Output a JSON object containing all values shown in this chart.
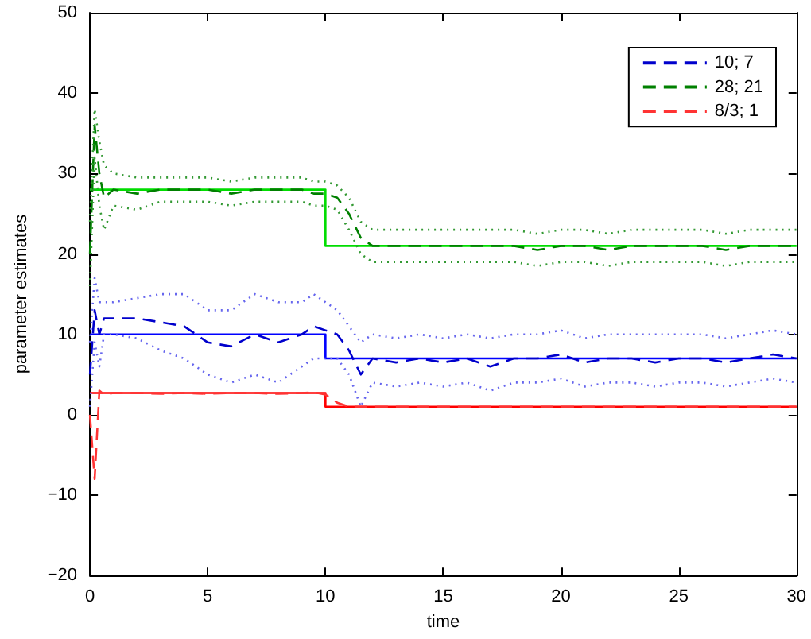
{
  "chart_data": {
    "type": "line",
    "xlabel": "time",
    "ylabel": "parameter estimates",
    "xlim": [
      0,
      30
    ],
    "ylim": [
      -20,
      50
    ],
    "xticks": [
      0,
      5,
      10,
      15,
      20,
      25,
      30
    ],
    "yticks": [
      -20,
      -10,
      0,
      10,
      20,
      30,
      40,
      50
    ],
    "grid": false,
    "legend": "top right",
    "marker": "none",
    "x": [
      0,
      0.2,
      0.4,
      0.6,
      1,
      2,
      3,
      4,
      5,
      6,
      7,
      8,
      9,
      9.5,
      10,
      10.5,
      11,
      11.5,
      12,
      13,
      14,
      15,
      16,
      17,
      18,
      19,
      20,
      21,
      22,
      23,
      24,
      25,
      26,
      27,
      28,
      29,
      30
    ],
    "series": [
      {
        "type": "step",
        "color": "#0000ff",
        "x": [
          0,
          10,
          30
        ],
        "values": [
          10,
          7,
          7
        ],
        "line_style": "solid"
      },
      {
        "type": "step",
        "color": "#00dd00",
        "x": [
          0,
          10,
          30
        ],
        "values": [
          28,
          21,
          21
        ],
        "line_style": "solid"
      },
      {
        "type": "step",
        "color": "#ff0000",
        "x": [
          0,
          10,
          30
        ],
        "values": [
          2.7,
          1,
          1
        ],
        "line_style": "solid"
      },
      {
        "name": "10; 7",
        "color": "#0000cc",
        "line_style": "dashed",
        "values": [
          5,
          13,
          10,
          12,
          12,
          12,
          11.5,
          11,
          9,
          8.5,
          10,
          9,
          10,
          11,
          10.5,
          10,
          8,
          5,
          7,
          6.5,
          7,
          6.5,
          7,
          6,
          7,
          7,
          7.5,
          6.5,
          7,
          7,
          6.5,
          7,
          7,
          6.5,
          7,
          7.5,
          7
        ]
      },
      {
        "color": "#6666ee",
        "line_style": "dotted",
        "values": [
          9,
          17,
          14,
          14,
          14,
          14.5,
          15,
          15,
          13,
          13,
          15,
          14,
          14,
          15,
          14,
          13,
          11,
          9,
          10,
          9.5,
          10,
          9.5,
          10,
          9.5,
          10,
          10,
          10.5,
          9.5,
          10,
          10,
          10,
          10,
          10,
          9.5,
          10,
          10.5,
          10
        ]
      },
      {
        "color": "#6666ee",
        "line_style": "dotted",
        "values": [
          1,
          9,
          6,
          10,
          10,
          9.5,
          8,
          7,
          5,
          4,
          5,
          4,
          6,
          7,
          7,
          7,
          5,
          1,
          4,
          3.5,
          4,
          3.5,
          4,
          3,
          4,
          4,
          4.5,
          3.5,
          4,
          4,
          3.5,
          4,
          4,
          3.5,
          4,
          4.5,
          4
        ]
      },
      {
        "name": "28; 21",
        "color": "#008000",
        "line_style": "dashed",
        "values": [
          20,
          36,
          30,
          27,
          28,
          27.5,
          28,
          28,
          28,
          27.5,
          28,
          28,
          28,
          27.5,
          27.5,
          27,
          25,
          22,
          21,
          21,
          21,
          21,
          21,
          21,
          21,
          20.5,
          21,
          21,
          20.5,
          21,
          21,
          21,
          21,
          20.5,
          21,
          21,
          21
        ]
      },
      {
        "color": "#339933",
        "line_style": "dotted",
        "values": [
          24,
          38,
          34,
          31,
          30,
          29.5,
          29.5,
          29.5,
          29.5,
          29,
          29.5,
          29.5,
          29.5,
          29,
          29,
          28.5,
          27,
          24,
          23,
          23,
          23,
          23,
          23,
          23,
          23,
          22.5,
          23,
          23,
          22.5,
          23,
          23,
          23,
          23,
          22.5,
          23,
          23,
          23
        ]
      },
      {
        "color": "#339933",
        "line_style": "dotted",
        "values": [
          16,
          32,
          26,
          23,
          26,
          25.5,
          26.5,
          26.5,
          26.5,
          26,
          26.5,
          26.5,
          26.5,
          26,
          26,
          25.5,
          23,
          20,
          19,
          19,
          19,
          19,
          19,
          19,
          19,
          18.5,
          19,
          19,
          18.5,
          19,
          19,
          19,
          19,
          18.5,
          19,
          19,
          19
        ]
      },
      {
        "name": "8/3; 1",
        "color": "#ff3333",
        "line_style": "dashed",
        "values": [
          0,
          -8,
          3,
          2.5,
          2.7,
          2.7,
          2.6,
          2.7,
          2.6,
          2.7,
          2.7,
          2.6,
          2.7,
          2.8,
          2.5,
          1.5,
          1,
          1,
          1,
          1,
          1,
          1,
          1,
          1,
          1,
          1,
          1,
          1,
          1,
          1,
          1,
          1,
          1,
          1,
          1,
          1,
          1
        ]
      }
    ]
  }
}
